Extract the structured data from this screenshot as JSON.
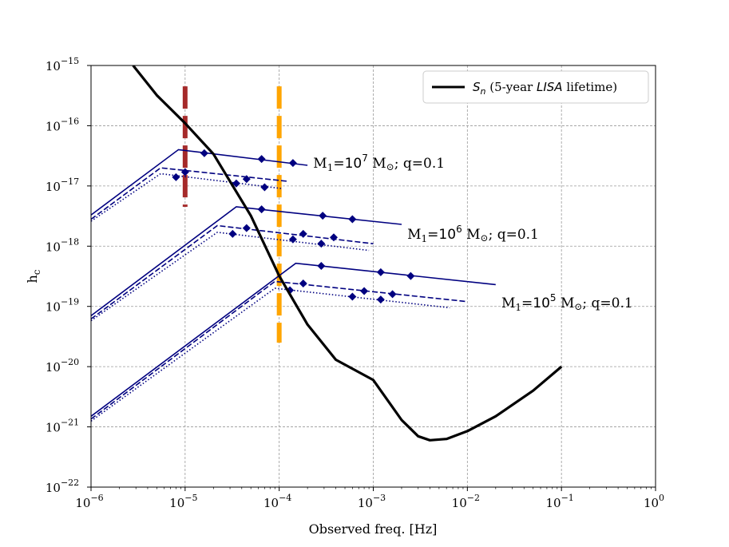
{
  "chart_data": {
    "type": "line",
    "xlabel": "Observed freq. [Hz]",
    "ylabel": "h",
    "ylabel_sub": "c",
    "x_scale": "log",
    "y_scale": "log",
    "xlim": [
      1e-06,
      1
    ],
    "ylim": [
      1e-22,
      1e-15
    ],
    "grid": true,
    "legend_position": "top-right",
    "x_ticks": [
      {
        "value": 1e-06,
        "base": "10",
        "exp": "−6"
      },
      {
        "value": 1e-05,
        "base": "10",
        "exp": "−5"
      },
      {
        "value": 0.0001,
        "base": "10",
        "exp": "−4"
      },
      {
        "value": 0.001,
        "base": "10",
        "exp": "−3"
      },
      {
        "value": 0.01,
        "base": "10",
        "exp": "−2"
      },
      {
        "value": 0.1,
        "base": "10",
        "exp": "−1"
      },
      {
        "value": 1,
        "base": "10",
        "exp": "0"
      }
    ],
    "y_ticks": [
      {
        "value": 1e-22,
        "base": "10",
        "exp": "−22"
      },
      {
        "value": 1e-21,
        "base": "10",
        "exp": "−21"
      },
      {
        "value": 1e-20,
        "base": "10",
        "exp": "−20"
      },
      {
        "value": 1e-19,
        "base": "10",
        "exp": "−19"
      },
      {
        "value": 1e-18,
        "base": "10",
        "exp": "−18"
      },
      {
        "value": 1e-17,
        "base": "10",
        "exp": "−17"
      },
      {
        "value": 1e-16,
        "base": "10",
        "exp": "−16"
      },
      {
        "value": 1e-15,
        "base": "10",
        "exp": "−15"
      }
    ],
    "legend": {
      "symbol": "S",
      "symbol_sub": "n",
      "text_before": " (5-year ",
      "text_italic": "LISA",
      "text_after": " lifetime)"
    },
    "sensitivity_curve": {
      "color": "#000000",
      "x": [
        2.8e-06,
        5e-06,
        1e-05,
        2e-05,
        5e-05,
        0.0001,
        0.0002,
        0.0004,
        0.001,
        0.002,
        0.003,
        0.004,
        0.006,
        0.01,
        0.02,
        0.05,
        0.1
      ],
      "y": [
        1e-15,
        3.2e-16,
        1.1e-16,
        3.4e-17,
        3.2e-18,
        3.2e-19,
        5e-20,
        1.3e-20,
        6e-21,
        1.3e-21,
        7e-22,
        6e-22,
        6.3e-22,
        8.5e-22,
        1.5e-21,
        4e-21,
        1e-20
      ]
    },
    "vertical_lines": [
      {
        "x": 1e-05,
        "y_range": [
          4.5e-18,
          4.5e-16
        ],
        "color": "#a52a2a"
      },
      {
        "x": 0.0001,
        "y_range": [
          2.5e-20,
          4.5e-16
        ],
        "color": "#ffa500"
      }
    ],
    "tracks": [
      {
        "label_prefix": "M",
        "label_sub": "1",
        "label_eq": "=10",
        "label_exp": "7",
        "label_unit": " M",
        "label_sun": "⊙",
        "label_suffix": "; q=0.1",
        "label_x": 0.00023,
        "label_y": 2.4e-17,
        "color": "#000080",
        "lines": [
          {
            "style": "solid",
            "x": [
              1e-06,
              8.5e-06,
              0.0002
            ],
            "y": [
              3.3e-18,
              4e-17,
              2.2e-17
            ]
          },
          {
            "style": "dashed",
            "x": [
              1e-06,
              5.5e-06,
              0.00012
            ],
            "y": [
              2.8e-18,
              2e-17,
              1.2e-17
            ]
          },
          {
            "style": "dotted",
            "x": [
              1e-06,
              5.5e-06,
              0.00011
            ],
            "y": [
              2.6e-18,
              1.6e-17,
              9e-18
            ]
          }
        ],
        "markers": [
          {
            "x": 1.6e-05,
            "y": 3.5e-17
          },
          {
            "x": 6.5e-05,
            "y": 2.8e-17
          },
          {
            "x": 0.00014,
            "y": 2.4e-17
          },
          {
            "x": 1e-05,
            "y": 1.7e-17
          },
          {
            "x": 4.5e-05,
            "y": 1.3e-17
          },
          {
            "x": 8e-06,
            "y": 1.4e-17
          },
          {
            "x": 3.5e-05,
            "y": 1.1e-17
          },
          {
            "x": 7e-05,
            "y": 9.5e-18
          }
        ]
      },
      {
        "label_prefix": "M",
        "label_sub": "1",
        "label_eq": "=10",
        "label_exp": "6",
        "label_unit": " M",
        "label_sun": "⊙",
        "label_suffix": "; q=0.1",
        "label_x": 0.0023,
        "label_y": 1.6e-18,
        "color": "#000080",
        "lines": [
          {
            "style": "solid",
            "x": [
              1e-06,
              3.5e-05,
              0.002
            ],
            "y": [
              7e-20,
              4.5e-18,
              2.3e-18
            ]
          },
          {
            "style": "dashed",
            "x": [
              1e-06,
              2.2e-05,
              0.001
            ],
            "y": [
              6.2e-20,
              2.2e-18,
              1.1e-18
            ]
          },
          {
            "style": "dotted",
            "x": [
              1e-06,
              2.2e-05,
              0.0009
            ],
            "y": [
              5.8e-20,
              1.7e-18,
              8.5e-19
            ]
          }
        ],
        "markers": [
          {
            "x": 6.5e-05,
            "y": 4.1e-18
          },
          {
            "x": 0.00029,
            "y": 3.2e-18
          },
          {
            "x": 0.0006,
            "y": 2.8e-18
          },
          {
            "x": 4.5e-05,
            "y": 2e-18
          },
          {
            "x": 0.00018,
            "y": 1.6e-18
          },
          {
            "x": 0.00038,
            "y": 1.4e-18
          },
          {
            "x": 3.2e-05,
            "y": 1.6e-18
          },
          {
            "x": 0.00014,
            "y": 1.3e-18
          },
          {
            "x": 0.00028,
            "y": 1.1e-18
          }
        ]
      },
      {
        "label_prefix": "M",
        "label_sub": "1",
        "label_eq": "=10",
        "label_exp": "5",
        "label_unit": " M",
        "label_sun": "⊙",
        "label_suffix": "; q=0.1",
        "label_x": 0.023,
        "label_y": 1.15e-19,
        "color": "#000080",
        "lines": [
          {
            "style": "solid",
            "x": [
              1e-06,
              0.00015,
              0.02
            ],
            "y": [
              1.5e-21,
              5.2e-19,
              2.3e-19
            ]
          },
          {
            "style": "dashed",
            "x": [
              1e-06,
              9e-05,
              0.01
            ],
            "y": [
              1.35e-21,
              2.6e-19,
              1.2e-19
            ]
          },
          {
            "style": "dotted",
            "x": [
              1e-06,
              9e-05,
              0.0065
            ],
            "y": [
              1.25e-21,
              2e-19,
              9.5e-20
            ]
          }
        ],
        "markers": [
          {
            "x": 0.00028,
            "y": 4.7e-19
          },
          {
            "x": 0.0012,
            "y": 3.7e-19
          },
          {
            "x": 0.0025,
            "y": 3.2e-19
          },
          {
            "x": 0.00018,
            "y": 2.4e-19
          },
          {
            "x": 0.0008,
            "y": 1.8e-19
          },
          {
            "x": 0.0016,
            "y": 1.6e-19
          },
          {
            "x": 0.00013,
            "y": 1.85e-19
          },
          {
            "x": 0.0006,
            "y": 1.45e-19
          },
          {
            "x": 0.0012,
            "y": 1.3e-19
          }
        ]
      }
    ]
  }
}
